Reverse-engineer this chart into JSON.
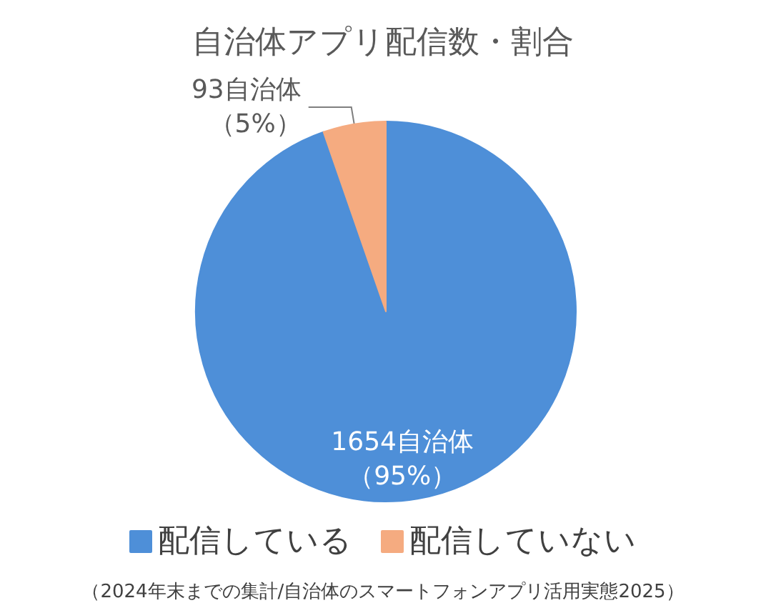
{
  "chart_data": {
    "type": "pie",
    "title": "自治体アプリ配信数・割合",
    "categories": [
      "配信している",
      "配信していない"
    ],
    "values": [
      1654,
      93
    ],
    "colors": [
      "#4e8fd8",
      "#f5ab80"
    ],
    "value_labels": [
      "1654自治体（95%）",
      "93自治体（5%）"
    ],
    "legend": "bottom",
    "annotations": [
      "（2024年末までの集計/自治体のスマートフォンアプリ活用実態2025）"
    ]
  }
}
